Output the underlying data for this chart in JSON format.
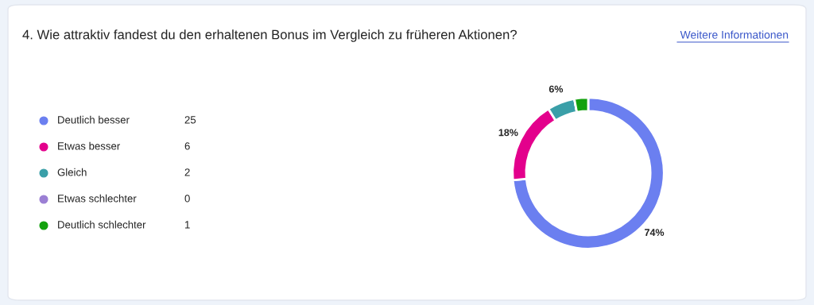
{
  "chart_data": {
    "type": "donut",
    "title": "4. Wie attraktiv fandest du den erhaltenen Bonus im Vergleich zu früheren Aktionen?",
    "annotations": [
      "Weitere Informationen",
      {
        "text": "74%",
        "x": "Deutlich besser"
      },
      {
        "text": "18%",
        "x": "Etwas besser"
      },
      {
        "text": "6%",
        "x": "Gleich"
      }
    ],
    "categories": [
      "Deutlich besser",
      "Etwas besser",
      "Gleich",
      "Etwas schlechter",
      "Deutlich schlechter"
    ],
    "values": [
      25,
      6,
      2,
      0,
      1
    ],
    "colors": [
      "#6b7ff0",
      "#e3008c",
      "#3a9fa8",
      "#9b7fd4",
      "#13a10e"
    ],
    "value_labels": [
      "25",
      "6",
      "2",
      "0",
      "1"
    ],
    "legend": "left"
  }
}
